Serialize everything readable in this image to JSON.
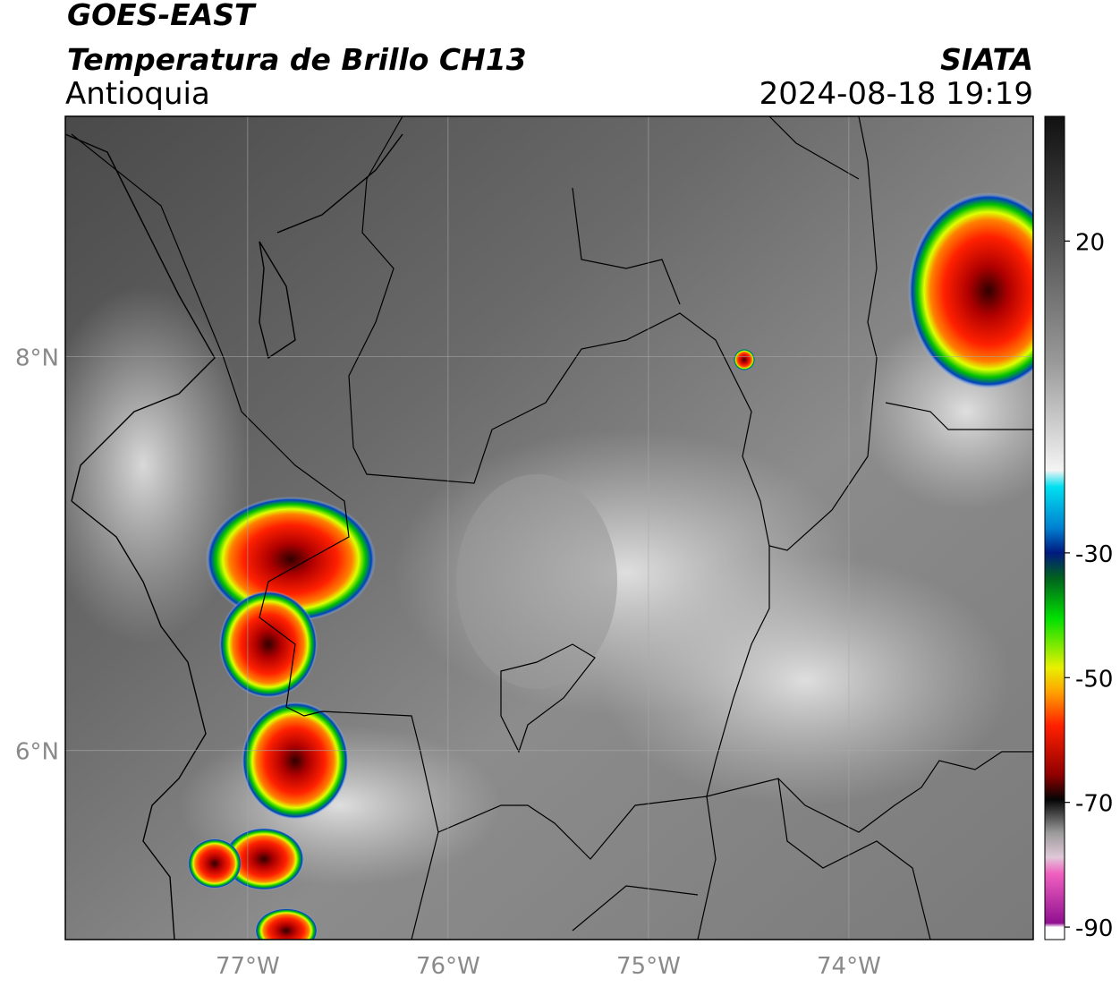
{
  "header": {
    "title": "GOES-EAST",
    "subtitle": "Temperatura de Brillo CH13",
    "region": "Antioquia",
    "source": "SIATA",
    "datetime": "2024-08-18 19:19"
  },
  "map": {
    "lonlim": [
      -77.91,
      -73.08
    ],
    "latlim": [
      5.04,
      9.22
    ],
    "lon_ticks": [
      {
        "value": -77,
        "label": "77°W"
      },
      {
        "value": -76,
        "label": "76°W"
      },
      {
        "value": -75,
        "label": "75°W"
      },
      {
        "value": -74,
        "label": "74°W"
      }
    ],
    "lat_ticks": [
      {
        "value": 8,
        "label": "8°N"
      },
      {
        "value": 6,
        "label": "6°N"
      }
    ]
  },
  "colorbar": {
    "vlim": [
      -92,
      40
    ],
    "ticks": [
      20,
      -30,
      -50,
      -70,
      -90
    ]
  }
}
